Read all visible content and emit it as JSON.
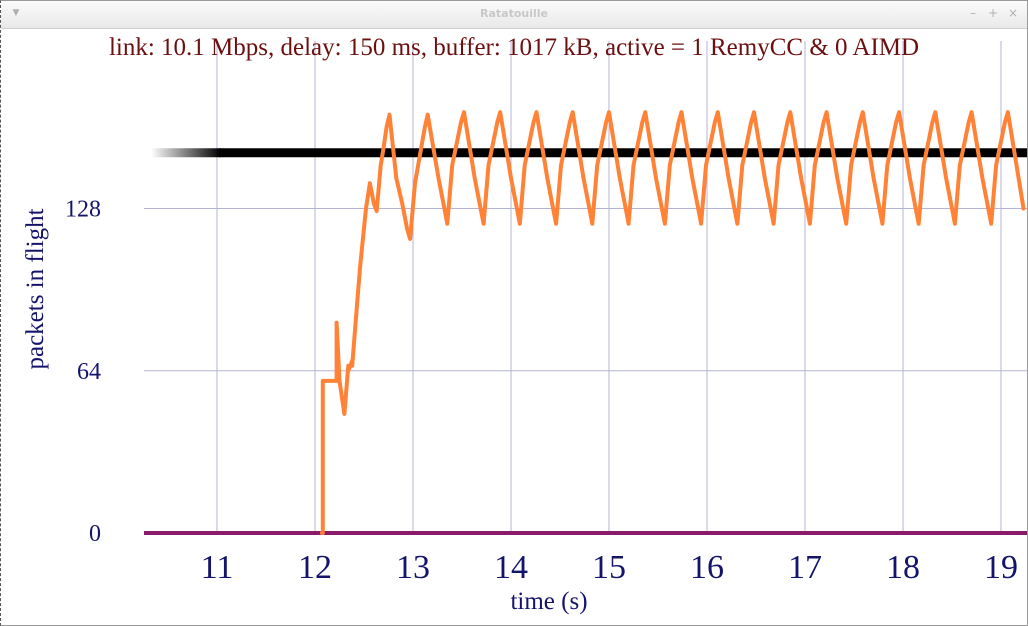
{
  "window": {
    "title": "Ratatouille",
    "menu_icon": "chevron-down-icon",
    "minimize_icon": "minimize-icon",
    "maximize_icon": "maximize-icon",
    "close_icon": "close-icon"
  },
  "chart_data": {
    "type": "line",
    "title": "link: 10.1 Mbps, delay: 150 ms, buffer: 1017 kB, active = 1 RemyCC & 0 AIMD",
    "xlabel": "time (s)",
    "ylabel": "packets in flight",
    "xlim": [
      10.35,
      19.25
    ],
    "ylim": [
      0,
      175
    ],
    "x_ticks": [
      11,
      12,
      13,
      14,
      15,
      16,
      17,
      18,
      19
    ],
    "y_ticks": [
      0,
      64,
      128
    ],
    "grid": true,
    "colors": {
      "title": "#6b0f0f",
      "axis_text": "#14146b",
      "grid": "#b4b4d6",
      "reference": "#000000",
      "baseline": "#8b1a6b",
      "series": "#ff8236"
    },
    "reference_level": 150,
    "baseline_level": 0,
    "series": [
      {
        "x": [
          12.07,
          12.08,
          12.08,
          12.22,
          12.22,
          12.25,
          12.3,
          12.34,
          12.34,
          12.38,
          12.38,
          12.42,
          12.46,
          12.52,
          12.56,
          12.6,
          12.63,
          12.67,
          12.7,
          12.73,
          12.76,
          12.83,
          12.89,
          12.94,
          12.97,
          13.02,
          13.12,
          13.15,
          13.26,
          13.32,
          13.35,
          13.4,
          13.49,
          13.52,
          13.63,
          13.69,
          13.72,
          13.77,
          13.86,
          13.89,
          14.0,
          14.06,
          14.09,
          14.14,
          14.23,
          14.26,
          14.37,
          14.43,
          14.46,
          14.51,
          14.6,
          14.63,
          14.74,
          14.8,
          14.83,
          14.88,
          14.97,
          15.0,
          15.11,
          15.17,
          15.2,
          15.25,
          15.34,
          15.37,
          15.48,
          15.54,
          15.57,
          15.62,
          15.71,
          15.74,
          15.85,
          15.91,
          15.94,
          15.99,
          16.08,
          16.11,
          16.22,
          16.28,
          16.31,
          16.36,
          16.45,
          16.48,
          16.59,
          16.65,
          16.68,
          16.73,
          16.82,
          16.85,
          16.96,
          17.02,
          17.05,
          17.1,
          17.19,
          17.22,
          17.33,
          17.39,
          17.42,
          17.47,
          17.56,
          17.59,
          17.7,
          17.76,
          17.79,
          17.84,
          17.93,
          17.96,
          18.07,
          18.13,
          18.16,
          18.21,
          18.3,
          18.33,
          18.44,
          18.5,
          18.53,
          18.58,
          18.67,
          18.7,
          18.81,
          18.87,
          18.9,
          18.95,
          19.04,
          19.07,
          19.18,
          19.23
        ],
        "y": [
          0,
          0,
          60,
          60,
          83,
          60,
          47,
          66,
          64,
          68,
          66,
          86,
          105,
          128,
          138,
          130,
          127,
          145,
          152,
          160,
          165,
          140,
          130,
          120,
          116,
          138,
          160,
          165,
          140,
          128,
          122,
          145,
          162,
          166,
          140,
          128,
          122,
          145,
          162,
          166,
          140,
          128,
          122,
          145,
          162,
          166,
          140,
          128,
          122,
          145,
          162,
          166,
          140,
          128,
          122,
          145,
          162,
          166,
          140,
          128,
          122,
          145,
          162,
          166,
          140,
          128,
          122,
          145,
          162,
          166,
          140,
          128,
          122,
          145,
          162,
          166,
          140,
          128,
          122,
          145,
          162,
          166,
          140,
          128,
          122,
          145,
          162,
          166,
          140,
          128,
          122,
          145,
          162,
          166,
          140,
          128,
          122,
          145,
          162,
          166,
          140,
          128,
          122,
          145,
          162,
          166,
          140,
          128,
          122,
          145,
          162,
          166,
          140,
          128,
          122,
          145,
          162,
          166,
          140,
          128,
          122,
          145,
          162,
          166,
          140,
          128
        ]
      }
    ]
  }
}
